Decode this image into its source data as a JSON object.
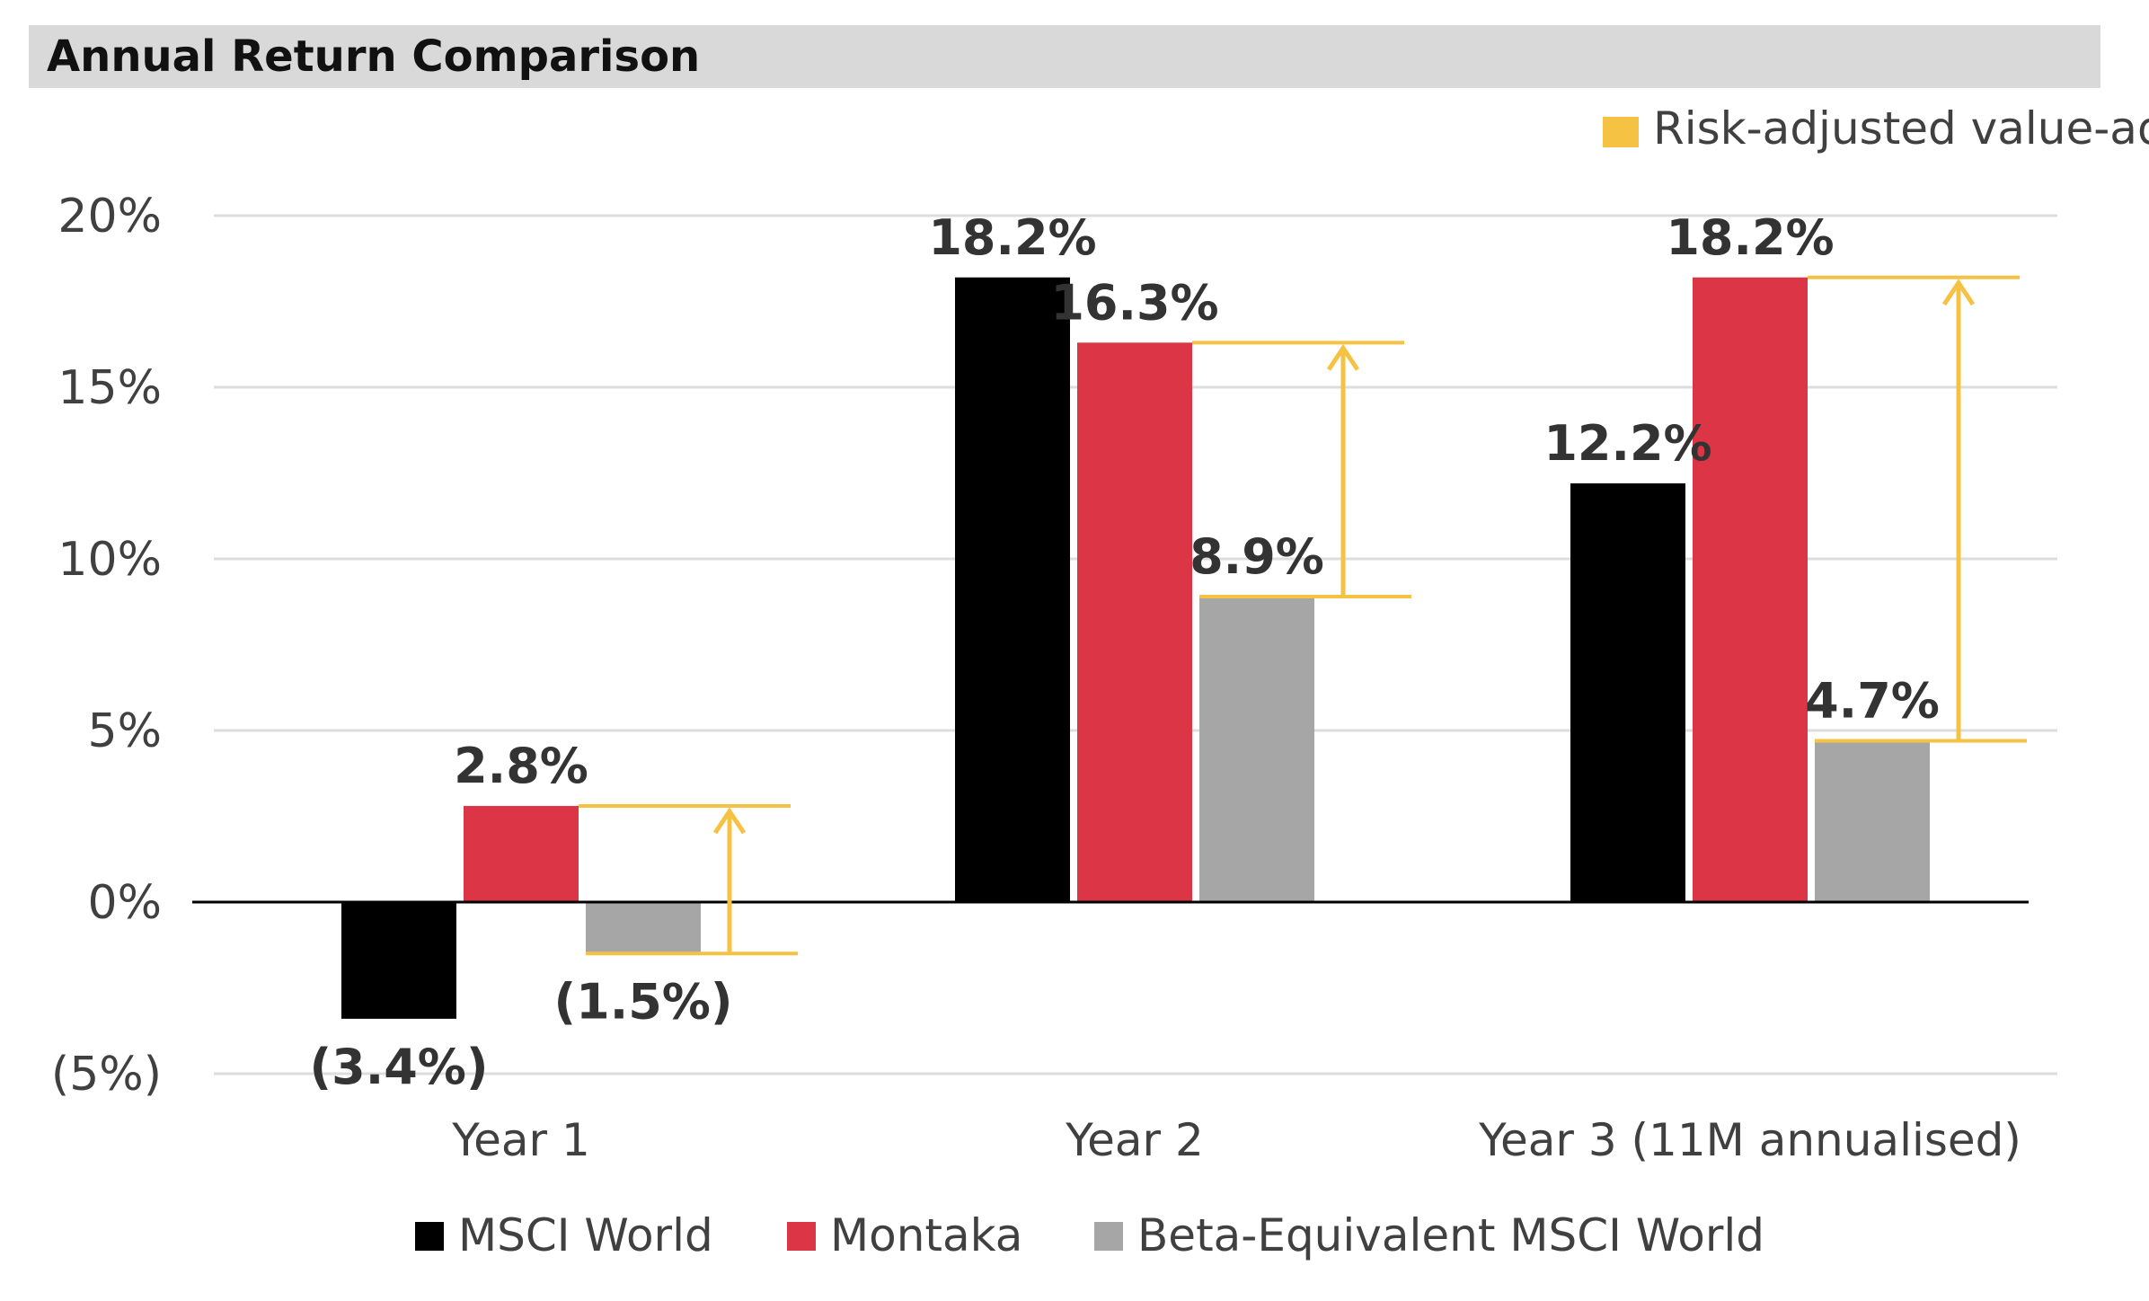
{
  "chart_data": {
    "type": "bar",
    "title": "Annual Return Comparison",
    "categories": [
      "Year 1",
      "Year 2",
      "Year 3 (11M annualised)"
    ],
    "series": [
      {
        "name": "MSCI World",
        "color": "#000000",
        "values": [
          -3.4,
          18.2,
          12.2
        ],
        "labels": [
          "(3.4%)",
          "18.2%",
          "12.2%"
        ]
      },
      {
        "name": "Montaka",
        "color": "#dc3545",
        "values": [
          2.8,
          16.3,
          18.2
        ],
        "labels": [
          "2.8%",
          "16.3%",
          "18.2%"
        ]
      },
      {
        "name": "Beta-Equivalent MSCI World",
        "color": "#a6a6a6",
        "values": [
          -1.5,
          8.9,
          4.7
        ],
        "labels": [
          "(1.5%)",
          "8.9%",
          "4.7%"
        ]
      }
    ],
    "y_ticks": [
      {
        "value": 20,
        "label": "20%"
      },
      {
        "value": 15,
        "label": "15%"
      },
      {
        "value": 10,
        "label": "10%"
      },
      {
        "value": 5,
        "label": "5%"
      },
      {
        "value": 0,
        "label": "0%"
      },
      {
        "value": -5,
        "label": "(5%)"
      }
    ],
    "ylim": [
      -5,
      20
    ],
    "grid": true,
    "annotation": {
      "name": "Risk-adjusted value-add",
      "color": "#f6c244",
      "placement": "top-right"
    },
    "legend_placement": "bottom"
  }
}
